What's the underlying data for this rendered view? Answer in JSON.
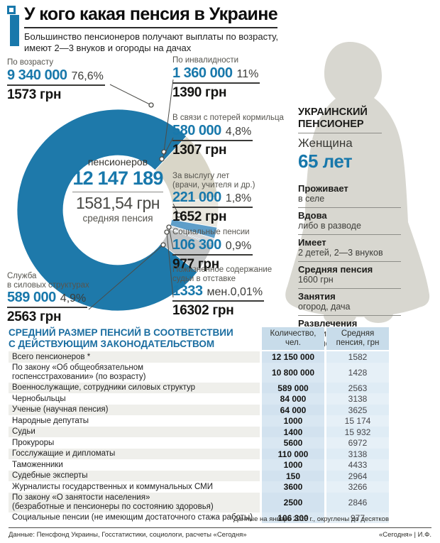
{
  "header": {
    "title": "У кого какая пенсия в Украине",
    "subtitle": "Большинство пенсионеров получают выплаты по возрасту,\nимеют 2—3 внуков и огороды на дачах"
  },
  "chart_data": {
    "type": "pie",
    "title": "У кого какая пенсия в Украине",
    "legend_position": "around",
    "center": {
      "label_top": "пенсионеров",
      "total": "12 147 189",
      "avg": "1581,54 грн",
      "avg_label": "средняя пенсия"
    },
    "slices": [
      {
        "name": "По возрасту",
        "count": "9 340 000",
        "percent": "76,6%",
        "value": 76.6,
        "pension": "1573 грн",
        "color": "#1e79aa"
      },
      {
        "name": "По инвалидности",
        "count": "1 360 000",
        "percent": "11%",
        "value": 11,
        "pension": "1390 грн",
        "color": "#d9d6c8"
      },
      {
        "name": "В связи с потерей кормильца",
        "count": "580 000",
        "percent": "4,8%",
        "value": 4.8,
        "pension": "1307 грн",
        "color": "#eae8e0"
      },
      {
        "name": "За выслугу лет\n(врачи, учителя и др.)",
        "count": "221 000",
        "percent": "1,8%",
        "value": 1.8,
        "pension": "1652 грн",
        "color": "#5f9ec9"
      },
      {
        "name": "Социальные пенсии",
        "count": "106 300",
        "percent": "0,9%",
        "value": 0.9,
        "pension": "977 грн",
        "color": "#d7d9db"
      },
      {
        "name": "Пожизненное содержание\nсудьи в отставке",
        "count": "1333",
        "percent": "мен.0,01%",
        "value": 0.01,
        "pension": "16302 грн",
        "color": "#46759a"
      },
      {
        "name": "Служба\nв силовых структурах",
        "count": "589 000",
        "percent": "4,9%",
        "value": 4.9,
        "pension": "2563 грн",
        "color": "#c3c5c6"
      }
    ]
  },
  "profile": {
    "heading": "УКРАИНСКИЙ\nПЕНСИОНЕР",
    "gender": "Женщина",
    "age": "65 лет",
    "rows": [
      {
        "label": "Проживает",
        "value": "в селе"
      },
      {
        "label": "Вдова",
        "value": "либо в разводе"
      },
      {
        "label": "Имеет",
        "value": "2 детей, 2—3 внуков"
      },
      {
        "label": "Средняя пенсия",
        "value": "1600 грн"
      },
      {
        "label": "Занятия",
        "value": "огород, дача"
      },
      {
        "label": "Развлечения",
        "value": "телевизор,\nучастие в выборах"
      }
    ]
  },
  "table": {
    "title": "СРЕДНИЙ РАЗМЕР ПЕНСИЙ  В СООТВЕТСТВИИ\nС ДЕЙСТВУЮЩИМ ЗАКОНОДАТЕЛЬСТВОМ",
    "col1_header": "Количество,\nчел.",
    "col2_header": "Средняя\nпенсия, грн",
    "rows": [
      {
        "label": "Всего пенсионеров *",
        "count": "12 150 000",
        "pension": "1582"
      },
      {
        "label": "По закону «Об общеобязательном\nгоспенсстраховании» (по возрасту)",
        "count": "10 800 000",
        "pension": "1428"
      },
      {
        "label": "Военнослужащие, сотрудники силовых структур",
        "count": "589 000",
        "pension": "2563"
      },
      {
        "label": "Чернобыльцы",
        "count": "84 000",
        "pension": "3138"
      },
      {
        "label": "Ученые (научная пенсия)",
        "count": "64 000",
        "pension": "3625"
      },
      {
        "label": "Народные депутаты",
        "count": "1000",
        "pension": "15 174"
      },
      {
        "label": "Судьи",
        "count": "1400",
        "pension": "15 932"
      },
      {
        "label": "Прокуроры",
        "count": "5600",
        "pension": "6972"
      },
      {
        "label": "Госслужащие и дипломаты",
        "count": "110 000",
        "pension": "3138"
      },
      {
        "label": "Таможенники",
        "count": "1000",
        "pension": "4433"
      },
      {
        "label": "Судебные эксперты",
        "count": "150",
        "pension": "2964"
      },
      {
        "label": "Журналисты государственных и коммунальных СМИ",
        "count": "3600",
        "pension": "3266"
      },
      {
        "label": "По закону «О занятости населения»\n(безработные и пенсионеры по состоянию здоровья)",
        "count": "2500",
        "pension": "2846"
      },
      {
        "label": "Социальные пенсии  (не имеющим достаточного стажа работы)",
        "count": "106 300",
        "pension": "977"
      }
    ],
    "footnote": "*Данные на январь 2015 г., округлены до десятков"
  },
  "footer": {
    "source": "Данные: Пенсфонд Украины, Госстатистики, социологи, расчеты «Сегодня»",
    "credit": "«Сегодня» | И.Ф."
  },
  "colors": {
    "accent_blue": "#1878ab",
    "table_blue": "#1a6da0",
    "silhouette_grey": "#d8d7d0"
  }
}
